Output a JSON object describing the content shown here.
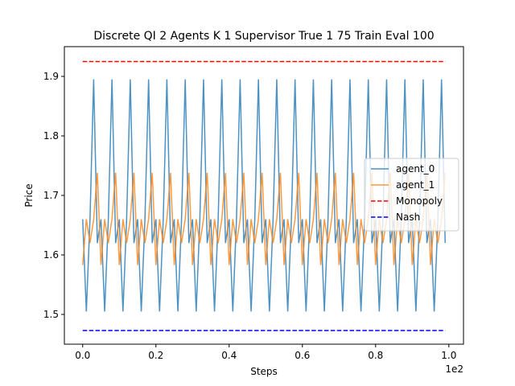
{
  "chart_data": {
    "type": "line",
    "title": "Discrete QI 2 Agents K 1 Supervisor True 1 75 Train Eval 100",
    "xlabel": "Steps",
    "ylabel": "Price",
    "x_offset_label": "1e2",
    "xlim": [
      -0.05,
      1.04
    ],
    "ylim": [
      1.45,
      1.95
    ],
    "xticks": [
      0.0,
      0.2,
      0.4,
      0.6,
      0.8,
      1.0
    ],
    "xtick_labels": [
      "0.0",
      "0.2",
      "0.4",
      "0.6",
      "0.8",
      "1.0"
    ],
    "yticks": [
      1.5,
      1.6,
      1.7,
      1.8,
      1.9
    ],
    "ytick_labels": [
      "1.5",
      "1.6",
      "1.7",
      "1.8",
      "1.9"
    ],
    "legend_position": "center-right",
    "series": [
      {
        "name": "agent_0",
        "color": "#1f77b4",
        "opacity": 0.8,
        "dash": "solid",
        "x_step": 0.01,
        "values": [
          1.66,
          1.505,
          1.66,
          1.895,
          1.62,
          1.66,
          1.505,
          1.66,
          1.895,
          1.62,
          1.66,
          1.505,
          1.66,
          1.895,
          1.62,
          1.66,
          1.505,
          1.66,
          1.895,
          1.62,
          1.66,
          1.505,
          1.66,
          1.895,
          1.62,
          1.66,
          1.505,
          1.66,
          1.895,
          1.62,
          1.66,
          1.505,
          1.66,
          1.895,
          1.62,
          1.66,
          1.505,
          1.66,
          1.895,
          1.62,
          1.66,
          1.505,
          1.66,
          1.895,
          1.62,
          1.66,
          1.505,
          1.66,
          1.895,
          1.62,
          1.66,
          1.505,
          1.66,
          1.895,
          1.62,
          1.66,
          1.505,
          1.66,
          1.895,
          1.62,
          1.66,
          1.505,
          1.66,
          1.895,
          1.62,
          1.66,
          1.505,
          1.66,
          1.895,
          1.62,
          1.66,
          1.505,
          1.66,
          1.895,
          1.62,
          1.66,
          1.505,
          1.66,
          1.895,
          1.62,
          1.66,
          1.505,
          1.66,
          1.895,
          1.62,
          1.66,
          1.505,
          1.66,
          1.895,
          1.62,
          1.66,
          1.505,
          1.66,
          1.895,
          1.62,
          1.66,
          1.505,
          1.66,
          1.895,
          1.62
        ]
      },
      {
        "name": "agent_1",
        "color": "#ff7f0e",
        "opacity": 0.8,
        "dash": "solid",
        "x_step": 0.01,
        "values": [
          1.583,
          1.66,
          1.62,
          1.66,
          1.738,
          1.583,
          1.66,
          1.62,
          1.66,
          1.738,
          1.583,
          1.66,
          1.62,
          1.66,
          1.738,
          1.583,
          1.66,
          1.62,
          1.66,
          1.738,
          1.583,
          1.66,
          1.62,
          1.66,
          1.738,
          1.583,
          1.66,
          1.62,
          1.66,
          1.738,
          1.583,
          1.66,
          1.62,
          1.66,
          1.738,
          1.583,
          1.66,
          1.62,
          1.66,
          1.738,
          1.583,
          1.66,
          1.62,
          1.66,
          1.738,
          1.583,
          1.66,
          1.62,
          1.66,
          1.738,
          1.583,
          1.66,
          1.62,
          1.66,
          1.738,
          1.583,
          1.66,
          1.62,
          1.66,
          1.738,
          1.583,
          1.66,
          1.62,
          1.66,
          1.738,
          1.583,
          1.66,
          1.62,
          1.66,
          1.738,
          1.583,
          1.66,
          1.62,
          1.66,
          1.738,
          1.583,
          1.66,
          1.62,
          1.66,
          1.738,
          1.583,
          1.66,
          1.62,
          1.66,
          1.738,
          1.583,
          1.66,
          1.62,
          1.66,
          1.738,
          1.583,
          1.66,
          1.62,
          1.66,
          1.738,
          1.583,
          1.66,
          1.62,
          1.66,
          1.738
        ]
      },
      {
        "name": "Monopoly",
        "color": "#ff0000",
        "dash": "dashed",
        "x": [
          0.0,
          0.99
        ],
        "values": [
          1.925,
          1.925
        ]
      },
      {
        "name": "Nash",
        "color": "#0000ff",
        "dash": "dashed",
        "x": [
          0.0,
          0.99
        ],
        "values": [
          1.473,
          1.473
        ]
      }
    ]
  }
}
